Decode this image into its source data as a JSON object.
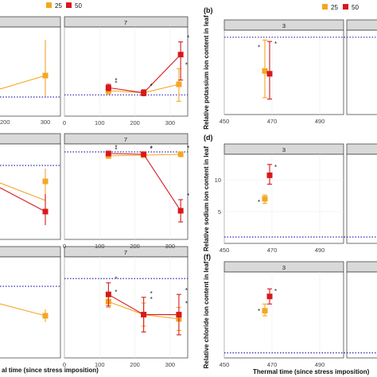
{
  "colors": {
    "series_25": "#f5a623",
    "series_50": "#d7191c",
    "reference_line": "#2a2ab8"
  },
  "left_legend": {
    "items": [
      {
        "label": "25",
        "color": "#f5a623"
      },
      {
        "label": "50",
        "color": "#d7191c"
      }
    ]
  },
  "right_legend": {
    "items": [
      {
        "label": "25",
        "color": "#f5a623"
      },
      {
        "label": "50",
        "color": "#d7191c"
      }
    ]
  },
  "left_xlabel": "Thermal time (since stress imposition)",
  "right_xlabel": "Thermal time (since stress imposition)",
  "chart_data": [
    {
      "type": "line",
      "facet": "7",
      "row": 1,
      "xlim": [
        0,
        350
      ],
      "xticks": [
        0,
        100,
        200,
        300
      ],
      "ylim": [
        0.5,
        2.6
      ],
      "reference_y": 1.0,
      "series": [
        {
          "name": "25",
          "points": [
            {
              "x": 125,
              "y": 1.1,
              "lo": 1.02,
              "hi": 1.18
            },
            {
              "x": 225,
              "y": 1.05,
              "lo": 0.98,
              "hi": 1.12
            },
            {
              "x": 325,
              "y": 1.25,
              "lo": 0.85,
              "hi": 1.62
            }
          ]
        },
        {
          "name": "50",
          "points": [
            {
              "x": 125,
              "y": 1.17,
              "lo": 1.1,
              "hi": 1.25
            },
            {
              "x": 225,
              "y": 1.05,
              "lo": 0.98,
              "hi": 1.12
            },
            {
              "x": 330,
              "y": 1.95,
              "lo": 1.35,
              "hi": 2.25
            }
          ]
        }
      ],
      "annotations": [
        "*",
        "*",
        "*"
      ]
    },
    {
      "type": "line",
      "facet": "7",
      "row": 2,
      "xlim": [
        0,
        350
      ],
      "xticks": [
        0,
        100,
        200,
        300
      ],
      "ylim": [
        0,
        12
      ],
      "reference_y": 11.0,
      "series": [
        {
          "name": "25",
          "points": [
            {
              "x": 125,
              "y": 10.5,
              "lo": 10.2,
              "hi": 10.8
            },
            {
              "x": 225,
              "y": 10.6,
              "lo": 10.3,
              "hi": 10.9
            },
            {
              "x": 330,
              "y": 10.7,
              "lo": 10.4,
              "hi": 11.0
            }
          ]
        },
        {
          "name": "50",
          "points": [
            {
              "x": 125,
              "y": 10.8,
              "lo": 10.5,
              "hi": 11.1
            },
            {
              "x": 225,
              "y": 10.7,
              "lo": 10.4,
              "hi": 11.0
            },
            {
              "x": 330,
              "y": 3.6,
              "lo": 2.2,
              "hi": 5.0
            }
          ]
        }
      ],
      "annotations": [
        "*",
        "*",
        "*",
        "*"
      ]
    },
    {
      "type": "line",
      "facet": "7",
      "row": 3,
      "xlim": [
        0,
        350
      ],
      "xticks": [
        0,
        100,
        200,
        300
      ],
      "ylim": [
        0,
        7
      ],
      "reference_y": 5.5,
      "series": [
        {
          "name": "25",
          "points": [
            {
              "x": 125,
              "y": 3.9,
              "lo": 3.5,
              "hi": 4.3
            },
            {
              "x": 225,
              "y": 3.0,
              "lo": 2.2,
              "hi": 3.8
            },
            {
              "x": 325,
              "y": 2.7,
              "lo": 1.9,
              "hi": 3.5
            }
          ]
        },
        {
          "name": "50",
          "points": [
            {
              "x": 125,
              "y": 4.4,
              "lo": 3.6,
              "hi": 5.2
            },
            {
              "x": 225,
              "y": 3.0,
              "lo": 1.8,
              "hi": 4.2
            },
            {
              "x": 325,
              "y": 3.0,
              "lo": 1.6,
              "hi": 4.4
            }
          ]
        }
      ],
      "annotations": [
        "*",
        "*",
        "*",
        "*",
        "*"
      ]
    },
    {
      "type": "scatter",
      "panel": "(b)",
      "facet": "3",
      "xlim": [
        450,
        500
      ],
      "xticks": [
        450,
        470,
        490
      ],
      "ylim": [
        0.45,
        1.05
      ],
      "reference_y": 1.0,
      "ylabel": "Relative potassium ion content in leaf",
      "series": [
        {
          "name": "25",
          "points": [
            {
              "x": 467,
              "y": 0.76,
              "lo": 0.57,
              "hi": 0.98
            }
          ]
        },
        {
          "name": "50",
          "points": [
            {
              "x": 469,
              "y": 0.74,
              "lo": 0.56,
              "hi": 0.97
            }
          ]
        }
      ]
    },
    {
      "type": "scatter",
      "panel": "(d)",
      "facet": "3",
      "xlim": [
        450,
        500
      ],
      "xticks": [
        450,
        470,
        490
      ],
      "yticks": [
        5,
        10
      ],
      "ylim": [
        0,
        14
      ],
      "reference_y": 1.0,
      "ylabel": "Relative sodium ion content in leaf",
      "series": [
        {
          "name": "25",
          "points": [
            {
              "x": 467,
              "y": 7.0,
              "lo": 6.3,
              "hi": 7.6
            }
          ]
        },
        {
          "name": "50",
          "points": [
            {
              "x": 469,
              "y": 10.7,
              "lo": 9.3,
              "hi": 12.4
            }
          ]
        }
      ]
    },
    {
      "type": "scatter",
      "panel": "(f)",
      "facet": "3",
      "xlim": [
        450,
        500
      ],
      "xticks": [
        450,
        470,
        490
      ],
      "ylim": [
        0.7,
        5.8
      ],
      "reference_y": 1.0,
      "ylabel": "Relative chloride ion content in leaf",
      "series": [
        {
          "name": "25",
          "points": [
            {
              "x": 467,
              "y": 3.5,
              "lo": 3.2,
              "hi": 3.9
            }
          ]
        },
        {
          "name": "50",
          "points": [
            {
              "x": 469,
              "y": 4.35,
              "lo": 3.9,
              "hi": 4.8
            }
          ]
        }
      ]
    }
  ],
  "left_partial": {
    "row1_tick": "200",
    "row1_tick2": "300",
    "x_label_fragment": "al time (since stress imposition)"
  }
}
